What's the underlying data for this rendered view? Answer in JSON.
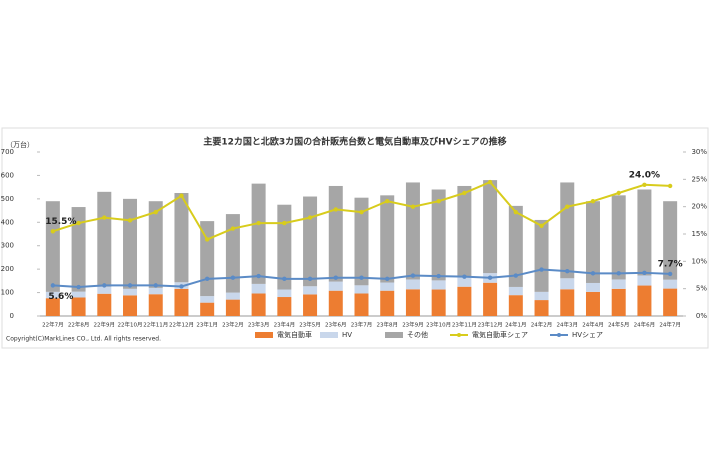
{
  "chart_data": {
    "type": "bar",
    "title": "主要12カ国と北欧3カ国の合計販売台数と電気自動車及びHVシェアの推移",
    "y_label": "（万台）",
    "copyright": "Copyright(C)MarkLines CO., Ltd. All rights reserved.",
    "stacked": true,
    "categories": [
      "22年7月",
      "22年8月",
      "22年9月",
      "22年10月",
      "22年11月",
      "22年12月",
      "23年1月",
      "23年2月",
      "23年3月",
      "23年4月",
      "23年5月",
      "23年6月",
      "23年7月",
      "23年8月",
      "23年9月",
      "23年10月",
      "23年11月",
      "23年12月",
      "24年1月",
      "24年2月",
      "24年3月",
      "24年4月",
      "24年5月",
      "24年6月",
      "24年7月"
    ],
    "series": [
      {
        "name": "電気自動車",
        "color": "#ed7d31",
        "values": [
          76,
          79,
          95,
          88,
          93,
          116,
          57,
          70,
          96,
          81,
          92,
          108,
          96,
          108,
          114,
          113,
          125,
          142,
          89,
          68,
          114,
          103,
          116,
          130,
          117
        ]
      },
      {
        "name": "HV",
        "color": "#c9d7eb",
        "values": [
          27,
          25,
          30,
          28,
          27,
          28,
          28,
          30,
          41,
          32,
          35,
          39,
          35,
          35,
          42,
          39,
          40,
          41,
          35,
          35,
          47,
          38,
          40,
          43,
          38
        ]
      },
      {
        "name": "その他",
        "color": "#a6a6a6",
        "values": [
          387,
          361,
          405,
          384,
          370,
          381,
          320,
          335,
          428,
          362,
          383,
          408,
          374,
          372,
          414,
          388,
          390,
          397,
          346,
          307,
          409,
          349,
          359,
          367,
          335
        ]
      },
      {
        "name": "電気自動車シェア",
        "color": "#d8cc1c",
        "axis": "y2",
        "values": [
          15.5,
          17,
          18,
          17.5,
          19,
          22,
          14,
          16,
          17,
          17,
          18,
          19.5,
          19,
          21,
          20,
          21,
          22.5,
          24.5,
          19,
          16.5,
          20,
          21,
          22.5,
          24.0,
          23.8
        ],
        "value_labels": [
          "15.5%",
          null,
          null,
          null,
          null,
          null,
          null,
          null,
          null,
          null,
          null,
          null,
          null,
          null,
          null,
          null,
          null,
          null,
          null,
          null,
          null,
          null,
          null,
          "24.0%",
          null
        ]
      },
      {
        "name": "HVシェア",
        "color": "#5b8bc6",
        "axis": "y2",
        "values": [
          5.6,
          5.3,
          5.6,
          5.6,
          5.6,
          5.4,
          6.8,
          7,
          7.3,
          6.8,
          6.8,
          7,
          7,
          6.8,
          7.4,
          7.3,
          7.2,
          7,
          7.4,
          8.5,
          8.2,
          7.8,
          7.8,
          7.9,
          7.7
        ],
        "value_labels": [
          "5.6%",
          null,
          null,
          null,
          null,
          null,
          null,
          null,
          null,
          null,
          null,
          null,
          null,
          null,
          null,
          null,
          null,
          null,
          null,
          null,
          null,
          null,
          null,
          null,
          "7.7%"
        ]
      }
    ],
    "ylim": [
      0,
      700
    ],
    "yticks": [
      0,
      100,
      200,
      300,
      400,
      500,
      600,
      700
    ],
    "y2lim": [
      0,
      30
    ],
    "y2ticks": [
      {
        "value": 0,
        "label": "0%"
      },
      {
        "value": 5,
        "label": "5%"
      },
      {
        "value": 10,
        "label": "10%"
      },
      {
        "value": 15,
        "label": "15%"
      },
      {
        "value": 20,
        "label": "20%"
      },
      {
        "value": 25,
        "label": "25%"
      },
      {
        "value": 30,
        "label": "30%"
      }
    ]
  }
}
